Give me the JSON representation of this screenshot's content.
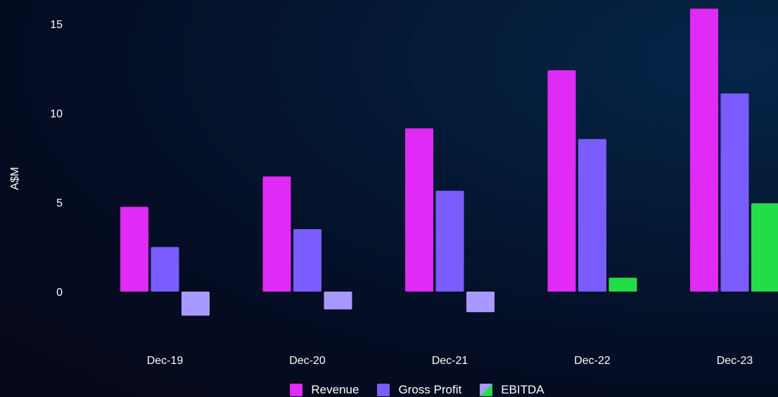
{
  "chart_data": {
    "type": "bar",
    "ylabel": "A$M",
    "xlabel": "",
    "ylim": [
      -2.5,
      16.2
    ],
    "yticks": [
      0,
      5,
      10,
      15
    ],
    "categories": [
      "Dec-19",
      "Dec-20",
      "Dec-21",
      "Dec-22",
      "Dec-23"
    ],
    "series": [
      {
        "name": "Revenue",
        "color": "#e02af5",
        "values": [
          4.75,
          6.45,
          9.15,
          12.4,
          15.85
        ]
      },
      {
        "name": "Gross Profit",
        "color": "#7b5cff",
        "values": [
          2.5,
          3.5,
          5.65,
          8.55,
          11.1
        ]
      },
      {
        "name": "EBITDA",
        "color_positive": "#22dd48",
        "color_negative": "#a899ff",
        "values": [
          -1.35,
          -1.0,
          -1.15,
          0.78,
          4.95
        ]
      }
    ],
    "legend_position": "bottom-center",
    "grid": false
  }
}
